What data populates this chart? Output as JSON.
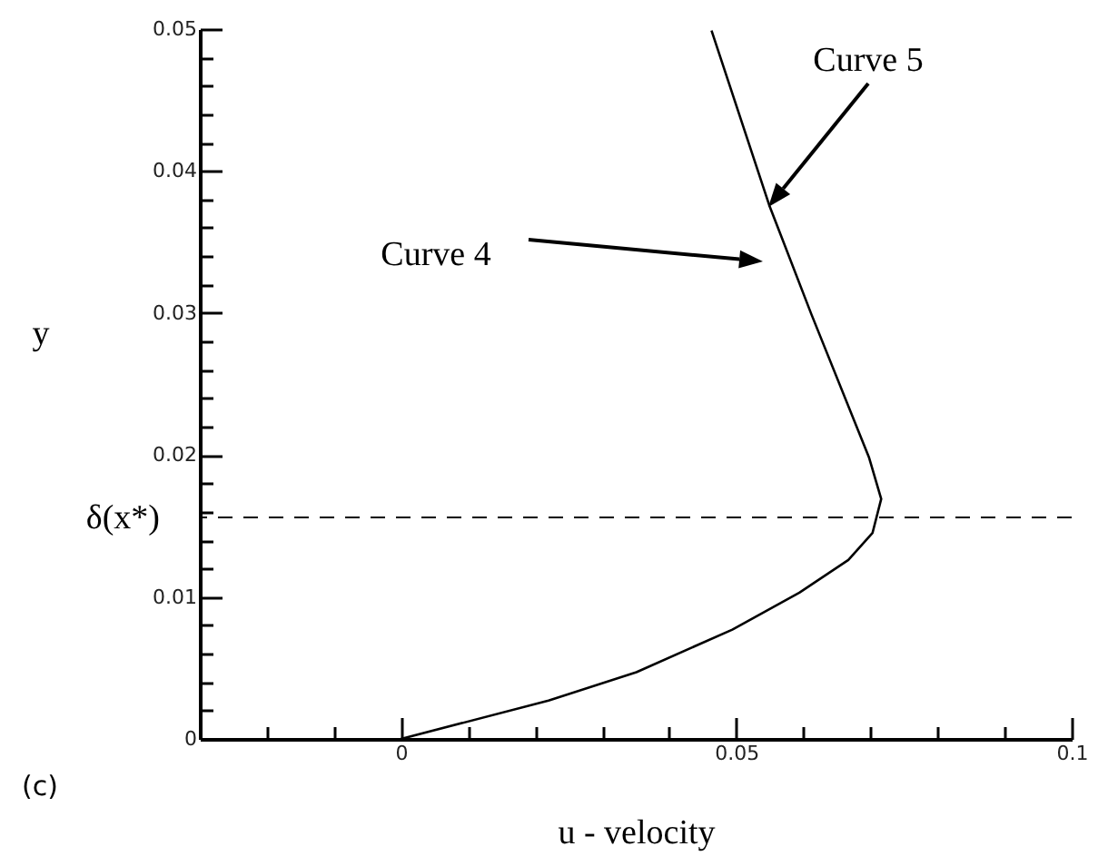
{
  "chart_data": {
    "type": "line",
    "xlabel": "u - velocity",
    "ylabel": "y",
    "x": [
      0,
      0.022,
      0.0351,
      0.0494,
      0.0594,
      0.0667,
      0.0703,
      0.0716,
      0.0698,
      0.0612,
      0.0549,
      0.0463
    ],
    "series": [
      {
        "color": "#000000",
        "values": [
          0,
          0.0027,
          0.0047,
          0.0077,
          0.0103,
          0.0126,
          0.0145,
          0.0169,
          0.0198,
          0.0299,
          0.0376,
          0.0499
        ]
      }
    ],
    "xlim": [
      -0.03,
      0.1
    ],
    "xticks": [
      {
        "value": -0.02,
        "label": null
      },
      {
        "value": -0.01,
        "label": null
      },
      0,
      {
        "value": 0.01,
        "label": null
      },
      {
        "value": 0.02,
        "label": null
      },
      {
        "value": 0.03,
        "label": null
      },
      {
        "value": 0.04,
        "label": null
      },
      0.05,
      {
        "value": 0.06,
        "label": null
      },
      {
        "value": 0.07,
        "label": null
      },
      {
        "value": 0.08,
        "label": null
      },
      {
        "value": 0.09,
        "label": null
      },
      0.1
    ],
    "ylim": [
      0,
      0.05
    ],
    "yticks": [
      0,
      {
        "value": 0.002,
        "label": null
      },
      {
        "value": 0.004,
        "label": null
      },
      {
        "value": 0.006,
        "label": null
      },
      {
        "value": 0.008,
        "label": null
      },
      0.01,
      {
        "value": 0.012,
        "label": null
      },
      {
        "value": 0.014,
        "label": null
      },
      {
        "value": 0.016,
        "label": null
      },
      {
        "value": 0.018,
        "label": null
      },
      0.02,
      {
        "value": 0.022,
        "label": null
      },
      {
        "value": 0.024,
        "label": null
      },
      {
        "value": 0.026,
        "label": null
      },
      {
        "value": 0.028,
        "label": null
      },
      0.03,
      {
        "value": 0.032,
        "label": null
      },
      {
        "value": 0.034,
        "label": null
      },
      {
        "value": 0.036,
        "label": null
      },
      {
        "value": 0.038,
        "label": null
      },
      0.04,
      {
        "value": 0.042,
        "label": null
      },
      {
        "value": 0.044,
        "label": null
      },
      {
        "value": 0.046,
        "label": null
      },
      {
        "value": 0.048,
        "label": null
      },
      0.05
    ],
    "ref_lines": [
      {
        "axis": "y",
        "value": 0.0156,
        "label": "δ(x*)",
        "color": "#000000",
        "line_style": "dashed"
      }
    ],
    "annotations": [
      "Curve 4",
      "Curve 5",
      "(c)"
    ],
    "grid": false,
    "marker": "none",
    "line_style": "solid"
  }
}
